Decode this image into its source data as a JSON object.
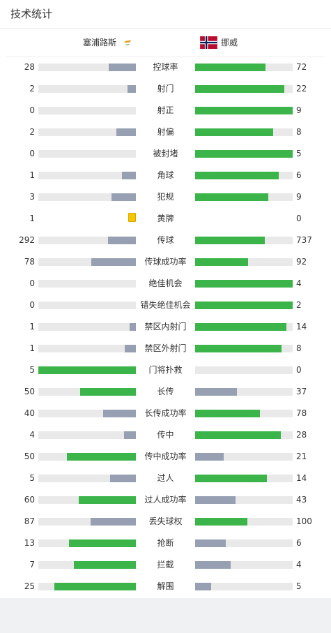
{
  "header": {
    "title": "技术统计"
  },
  "teams": {
    "home": {
      "name": "塞浦路斯"
    },
    "away": {
      "name": "挪威"
    }
  },
  "colors": {
    "leader_bar": "#3bb54a",
    "trailer_bar": "#96a0b2",
    "bar_track": "#e9e9e9",
    "yellow_card": "#f5c800"
  },
  "stats": [
    {
      "label": "控球率",
      "home": "28",
      "away": "72"
    },
    {
      "label": "射门",
      "home": "2",
      "away": "22"
    },
    {
      "label": "射正",
      "home": "0",
      "away": "9"
    },
    {
      "label": "射偏",
      "home": "2",
      "away": "8"
    },
    {
      "label": "被封堵",
      "home": "0",
      "away": "5"
    },
    {
      "label": "角球",
      "home": "1",
      "away": "6"
    },
    {
      "label": "犯规",
      "home": "3",
      "away": "9"
    },
    {
      "label": "黄牌",
      "home": "1",
      "away": "0",
      "card": true
    },
    {
      "label": "传球",
      "home": "292",
      "away": "737"
    },
    {
      "label": "传球成功率",
      "home": "78",
      "away": "92"
    },
    {
      "label": "绝佳机会",
      "home": "0",
      "away": "4"
    },
    {
      "label": "错失绝佳机会",
      "home": "0",
      "away": "2"
    },
    {
      "label": "禁区内射门",
      "home": "1",
      "away": "14"
    },
    {
      "label": "禁区外射门",
      "home": "1",
      "away": "8"
    },
    {
      "label": "门将扑救",
      "home": "5",
      "away": "0"
    },
    {
      "label": "长传",
      "home": "50",
      "away": "37"
    },
    {
      "label": "长传成功率",
      "home": "40",
      "away": "78"
    },
    {
      "label": "传中",
      "home": "4",
      "away": "28"
    },
    {
      "label": "传中成功率",
      "home": "50",
      "away": "21"
    },
    {
      "label": "过人",
      "home": "5",
      "away": "14"
    },
    {
      "label": "过人成功率",
      "home": "60",
      "away": "43"
    },
    {
      "label": "丢失球权",
      "home": "87",
      "away": "100"
    },
    {
      "label": "抢断",
      "home": "13",
      "away": "6"
    },
    {
      "label": "拦截",
      "home": "7",
      "away": "4"
    },
    {
      "label": "解围",
      "home": "25",
      "away": "5"
    }
  ]
}
